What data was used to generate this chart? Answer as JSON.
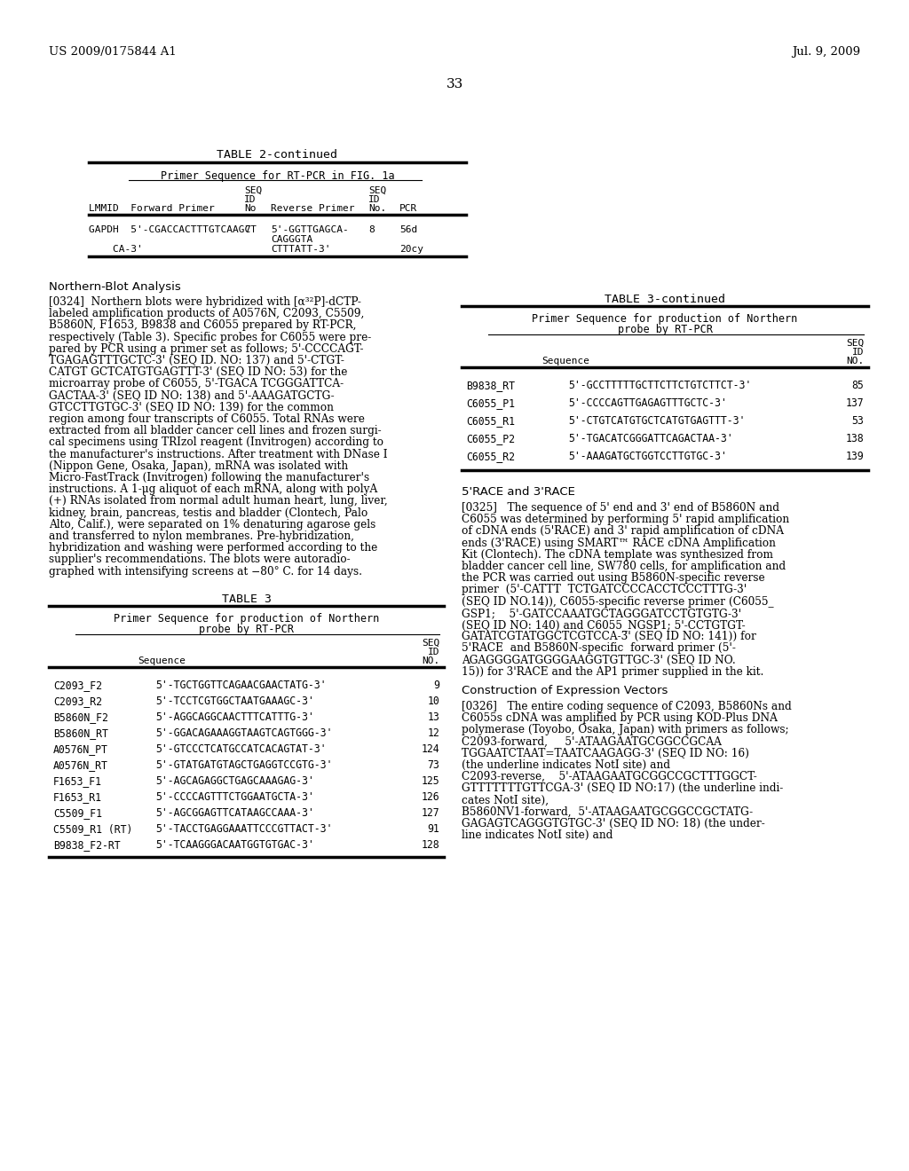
{
  "bg_color": "#ffffff",
  "header_left": "US 2009/0175844 A1",
  "header_right": "Jul. 9, 2009",
  "page_number": "33",
  "table2_title": "TABLE 2-continued",
  "table2_subtitle": "Primer Sequence for RT-PCR in FIG. 1a",
  "table3_title": "TABLE 3",
  "table3_subtitle1": "Primer Sequence for production of Northern",
  "table3_subtitle2": "probe by RT-PCR",
  "table3_rows": [
    [
      "C2093_F2",
      "5'-TGCTGGTTCAGAACGAACTATG-3'",
      "9"
    ],
    [
      "C2093_R2",
      "5'-TCCTCGTGGCTAATGAAAGC-3'",
      "10"
    ],
    [
      "B5860N_F2",
      "5'-AGGCAGGCAACTTTCATTTG-3'",
      "13"
    ],
    [
      "B5860N_RT",
      "5'-GGACAGAAAGGTAAGTCAGTGGG-3'",
      "12"
    ],
    [
      "A0576N_PT",
      "5'-GTCCCTCATGCCATCACAGTAT-3'",
      "124"
    ],
    [
      "A0576N_RT",
      "5'-GTATGATGTAGCTGAGGTCCGTG-3'",
      "73"
    ],
    [
      "F1653_F1",
      "5'-AGCAGAGGCTGAGCAAAGAG-3'",
      "125"
    ],
    [
      "F1653_R1",
      "5'-CCCCAGTTTCTGGAATGCTA-3'",
      "126"
    ],
    [
      "C5509_F1",
      "5'-AGCGGAGTTCATAAGCCAAA-3'",
      "127"
    ],
    [
      "C5509_R1 (RT)",
      "5'-TACCTGAGGAAATTCCCGTTACT-3'",
      "91"
    ],
    [
      "B9838_F2-RT",
      "5'-TCAAGGGACAATGGTGTGAC-3'",
      "128"
    ]
  ],
  "table3cont_title": "TABLE 3-continued",
  "table3cont_subtitle1": "Primer Sequence for production of Northern",
  "table3cont_subtitle2": "probe by RT-PCR",
  "table3cont_rows": [
    [
      "B9838_RT",
      "5'-GCCTTTTTGCTTCTTCTGTCTTCT-3'",
      "85"
    ],
    [
      "C6055_P1",
      "5'-CCCCAGTTGAGAGTTTGCTC-3'",
      "137"
    ],
    [
      "C6055_R1",
      "5'-CTGTCATGTGCTCATGTGAGTTT-3'",
      "53"
    ],
    [
      "C6055_P2",
      "5'-TGACATCGGGATTCAGACTAA-3'",
      "138"
    ],
    [
      "C6055_R2",
      "5'-AAAGATGCTGGTCCTTGTGC-3'",
      "139"
    ]
  ],
  "section_northern": "Northern-Blot Analysis",
  "para0324_lines": [
    "[0324]  Northern blots were hybridized with [α³²P]-dCTP-",
    "labeled amplification products of A0576N, C2093, C5509,",
    "B5860N, F1653, B9838 and C6055 prepared by RT-PCR,",
    "respectively (Table 3). Specific probes for C6055 were pre-",
    "pared by PCR using a primer set as follows; 5'-CCCCAGT-",
    "TGAGAGTTTGCTC-3' (SEQ ID. NO: 137) and 5'-CTGT-",
    "CATGT GCTCATGTGAGTTT-3' (SEQ ID NO: 53) for the",
    "microarray probe of C6055, 5'-TGACA TCGGGATTCA-",
    "GACTAA-3' (SEQ ID NO: 138) and 5'-AAAGATGCTG-",
    "GTCCTTGTGC-3' (SEQ ID NO: 139) for the common",
    "region among four transcripts of C6055. Total RNAs were",
    "extracted from all bladder cancer cell lines and frozen surgi-",
    "cal specimens using TRIzol reagent (Invitrogen) according to",
    "the manufacturer's instructions. After treatment with DNase I",
    "(Nippon Gene, Osaka, Japan), mRNA was isolated with",
    "Micro-FastTrack (Invitrogen) following the manufacturer's",
    "instructions. A 1-μg aliquot of each mRNA, along with polyA",
    "(+) RNAs isolated from normal adult human heart, lung, liver,",
    "kidney, brain, pancreas, testis and bladder (Clontech, Palo",
    "Alto, Calif.), were separated on 1% denaturing agarose gels",
    "and transferred to nylon membranes. Pre-hybridization,",
    "hybridization and washing were performed according to the",
    "supplier's recommendations. The blots were autoradio-",
    "graphed with intensifying screens at −80° C. for 14 days."
  ],
  "section_race": "5'RACE and 3'RACE",
  "para0325_lines": [
    "[0325]   The sequence of 5' end and 3' end of B5860N and",
    "C6055 was determined by performing 5' rapid amplification",
    "of cDNA ends (5'RACE) and 3' rapid amplification of cDNA",
    "ends (3'RACE) using SMART™ RACE cDNA Amplification",
    "Kit (Clontech). The cDNA template was synthesized from",
    "bladder cancer cell line, SW780 cells, for amplification and",
    "the PCR was carried out using B5860N-specific reverse",
    "primer  (5'-CATTT  TCTGATCCCCACCTCCCTTTG-3'",
    "(SEQ ID NO.14)), C6055-specific reverse primer (C6055_",
    "GSP1;    5'-GATCCAAATGCTAGGGATCCTGTGTG-3'",
    "(SEQ ID NO: 140) and C6055_NGSP1; 5'-CCTGTGT-",
    "GATATCGTATGGCTCGTCCA-3' (SEQ ID NO: 141)) for",
    "5'RACE  and B5860N-specific  forward primer (5'-",
    "AGAGGGGATGGGGAAGGTGTTGC-3' (SEQ ID NO.",
    "15)) for 3'RACE and the AP1 primer supplied in the kit."
  ],
  "section_expression": "Construction of Expression Vectors",
  "para0326_lines": [
    "[0326]   The entire coding sequence of C2093, B5860Ns and",
    "C6055s cDNA was amplified by PCR using KOD-Plus DNA",
    "polymerase (Toyobo, Osaka, Japan) with primers as follows;",
    "C2093-forward,     5'-ATAAGAATGCGGCCGCAA",
    "TGGAATCTAAT=TAATCAAGAGG-3' (SEQ ID NO: 16)",
    "(the underline indicates NotI site) and",
    "C2093-reverse,    5'-ATAAGAATGCGGCCGCTTTGGCT-",
    "GTTTTTTTGTTCGA-3' (SEQ ID NO:17) (the underline indi-",
    "cates NotI site),",
    "B5860NV1-forward,  5'-ATAAGAATGCGGCCGCTATG-",
    "GAGAGTCAGGGTGTGC-3' (SEQ ID NO: 18) (the under-",
    "line indicates NotI site) and"
  ]
}
